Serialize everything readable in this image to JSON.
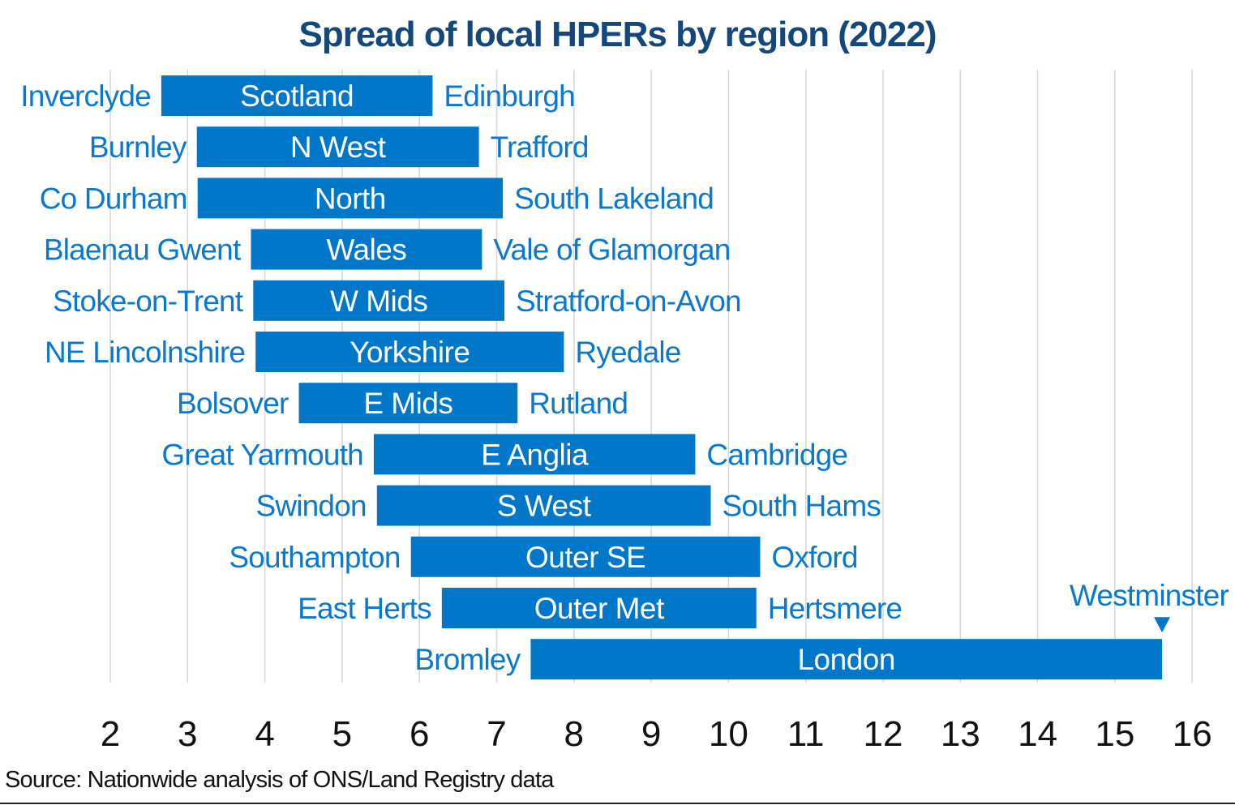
{
  "chart_data": {
    "type": "bar",
    "orientation": "horizontal-floating",
    "title": "Spread of local HPERs by region (2022)",
    "source": "Source: Nationwide analysis of ONS/Land Registry data",
    "xlim": [
      2,
      16
    ],
    "xticks": [
      2,
      3,
      4,
      5,
      6,
      7,
      8,
      9,
      10,
      11,
      12,
      13,
      14,
      15,
      16
    ],
    "grid": true,
    "color": "#0077c8",
    "label_color": "#0a78cc",
    "series": [
      {
        "region": "Scotland",
        "low_name": "Inverclyde",
        "low": 2.66,
        "high_name": "Edinburgh",
        "high": 6.17
      },
      {
        "region": "N West",
        "low_name": "Burnley",
        "low": 3.12,
        "high_name": "Trafford",
        "high": 6.77
      },
      {
        "region": "North",
        "low_name": "Co Durham",
        "low": 3.13,
        "high_name": "South Lakeland",
        "high": 7.08
      },
      {
        "region": "Wales",
        "low_name": "Blaenau Gwent",
        "low": 3.82,
        "high_name": "Vale of Glamorgan",
        "high": 6.81
      },
      {
        "region": "W Mids",
        "low_name": "Stoke-on-Trent",
        "low": 3.85,
        "high_name": "Stratford-on-Avon",
        "high": 7.1
      },
      {
        "region": "Yorkshire",
        "low_name": "NE Lincolnshire",
        "low": 3.88,
        "high_name": "Ryedale",
        "high": 7.87
      },
      {
        "region": "E Mids",
        "low_name": "Bolsover",
        "low": 4.44,
        "high_name": "Rutland",
        "high": 7.27
      },
      {
        "region": "E Anglia",
        "low_name": "Great Yarmouth",
        "low": 5.41,
        "high_name": "Cambridge",
        "high": 9.57
      },
      {
        "region": "S West",
        "low_name": "Swindon",
        "low": 5.45,
        "high_name": "South Hams",
        "high": 9.77
      },
      {
        "region": "Outer SE",
        "low_name": "Southampton",
        "low": 5.89,
        "high_name": "Oxford",
        "high": 10.41
      },
      {
        "region": "Outer Met",
        "low_name": "East Herts",
        "low": 6.29,
        "high_name": "Hertsmere",
        "high": 10.36
      },
      {
        "region": "London",
        "low_name": "Bromley",
        "low": 7.44,
        "high_name": "Westminster",
        "high": 15.61,
        "high_label_above": true
      }
    ]
  }
}
